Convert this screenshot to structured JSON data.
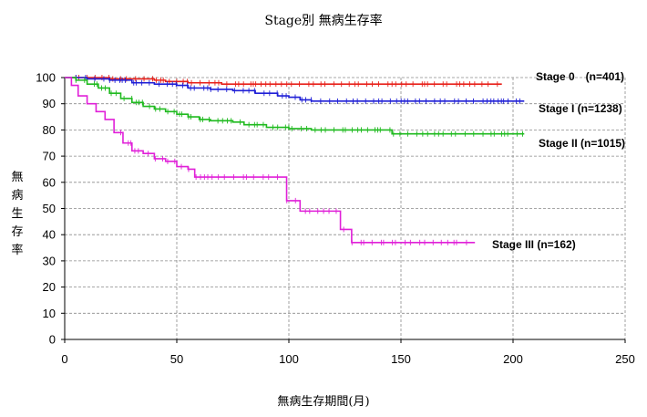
{
  "chart_data": {
    "type": "line",
    "title": "Stage別 無病生存率",
    "xlabel": "無病生存期間(月)",
    "ylabel": "無病生存率",
    "xlim": [
      0,
      250
    ],
    "ylim": [
      0,
      100
    ],
    "xticks": [
      "0",
      "50",
      "100",
      "150",
      "200",
      "250"
    ],
    "yticks": [
      "0",
      "10",
      "20",
      "30",
      "40",
      "50",
      "60",
      "70",
      "80",
      "90",
      "100"
    ],
    "grid": true,
    "series": [
      {
        "name": "Stage 0　(n=401)",
        "color": "#e8201a",
        "points": [
          [
            0,
            100
          ],
          [
            20,
            99.5
          ],
          [
            40,
            99
          ],
          [
            45,
            98.5
          ],
          [
            55,
            98
          ],
          [
            70,
            97.5
          ],
          [
            195,
            97.5
          ]
        ],
        "censor_range": [
          5,
          195
        ]
      },
      {
        "name": "Stage I (n=1238)",
        "color": "#1f1fd6",
        "points": [
          [
            0,
            100
          ],
          [
            10,
            99.5
          ],
          [
            20,
            99
          ],
          [
            30,
            98
          ],
          [
            40,
            97.5
          ],
          [
            50,
            97
          ],
          [
            55,
            96
          ],
          [
            65,
            95.5
          ],
          [
            75,
            95
          ],
          [
            85,
            94
          ],
          [
            95,
            93
          ],
          [
            100,
            92.5
          ],
          [
            105,
            91.5
          ],
          [
            110,
            91
          ],
          [
            205,
            91
          ]
        ],
        "censor_range": [
          5,
          205
        ]
      },
      {
        "name": "Stage II (n=1015)",
        "color": "#1fba1f",
        "points": [
          [
            0,
            100
          ],
          [
            5,
            99
          ],
          [
            10,
            97.5
          ],
          [
            15,
            96
          ],
          [
            20,
            94
          ],
          [
            25,
            92
          ],
          [
            30,
            90.5
          ],
          [
            35,
            89
          ],
          [
            40,
            88
          ],
          [
            45,
            87
          ],
          [
            50,
            86
          ],
          [
            55,
            85
          ],
          [
            60,
            84
          ],
          [
            65,
            83.5
          ],
          [
            75,
            83
          ],
          [
            80,
            82
          ],
          [
            90,
            81
          ],
          [
            100,
            80.5
          ],
          [
            110,
            80
          ],
          [
            145,
            80
          ],
          [
            146,
            78.5
          ],
          [
            205,
            78.5
          ]
        ],
        "censor_range": [
          5,
          205
        ]
      },
      {
        "name": "Stage III (n=162)",
        "color": "#e020d8",
        "points": [
          [
            0,
            100
          ],
          [
            3,
            97
          ],
          [
            6,
            93
          ],
          [
            10,
            90
          ],
          [
            14,
            87
          ],
          [
            18,
            84
          ],
          [
            22,
            79
          ],
          [
            26,
            75
          ],
          [
            30,
            72
          ],
          [
            35,
            71
          ],
          [
            40,
            69
          ],
          [
            45,
            68
          ],
          [
            50,
            66
          ],
          [
            55,
            65
          ],
          [
            58,
            62
          ],
          [
            70,
            62
          ],
          [
            80,
            62
          ],
          [
            99,
            62
          ],
          [
            99,
            53
          ],
          [
            105,
            53
          ],
          [
            105,
            49
          ],
          [
            123,
            49
          ],
          [
            123,
            42
          ],
          [
            128,
            42
          ],
          [
            128,
            37
          ],
          [
            183,
            37
          ]
        ],
        "censor_range": [
          25,
          183
        ]
      }
    ]
  }
}
